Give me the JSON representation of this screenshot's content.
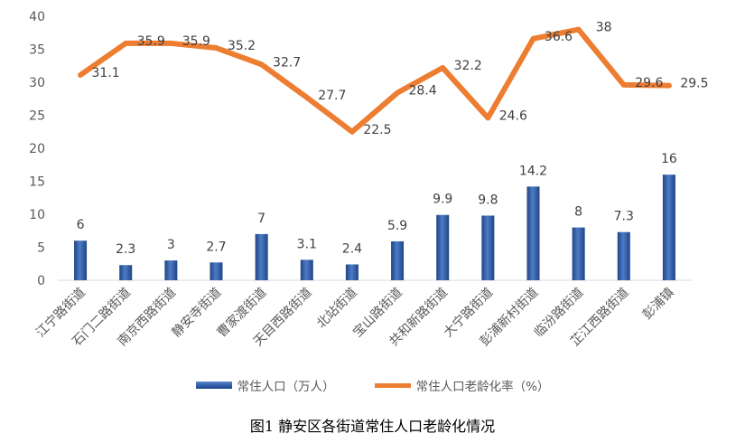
{
  "chart_data": {
    "type": "bar",
    "title": "",
    "caption": "图1 静安区各街道常住人口老龄化情况",
    "categories": [
      "江宁路街道",
      "石门二路街道",
      "南京西路街道",
      "静安寺街道",
      "曹家渡街道",
      "天目西路街道",
      "北站街道",
      "宝山路街道",
      "共和新路街道",
      "大宁路街道",
      "彭浦新村街道",
      "临汾路街道",
      "芷江西路街道",
      "彭浦镇"
    ],
    "series": [
      {
        "name": "常住人口（万人）",
        "type": "bar",
        "color": "#2E5AA8",
        "values": [
          6,
          2.3,
          3,
          2.7,
          7,
          3.1,
          2.4,
          5.9,
          9.9,
          9.8,
          14.2,
          8,
          7.3,
          16
        ]
      },
      {
        "name": "常住人口老龄化率（%）",
        "type": "line",
        "color": "#ED7D31",
        "values": [
          31.1,
          35.9,
          35.9,
          35.2,
          32.7,
          27.7,
          22.5,
          28.4,
          32.2,
          24.6,
          36.6,
          38,
          29.6,
          29.5
        ]
      }
    ],
    "ylim": [
      0,
      40
    ],
    "yticks": [
      0,
      5,
      10,
      15,
      20,
      25,
      30,
      35,
      40
    ],
    "grid": false,
    "legend": "bottom"
  }
}
